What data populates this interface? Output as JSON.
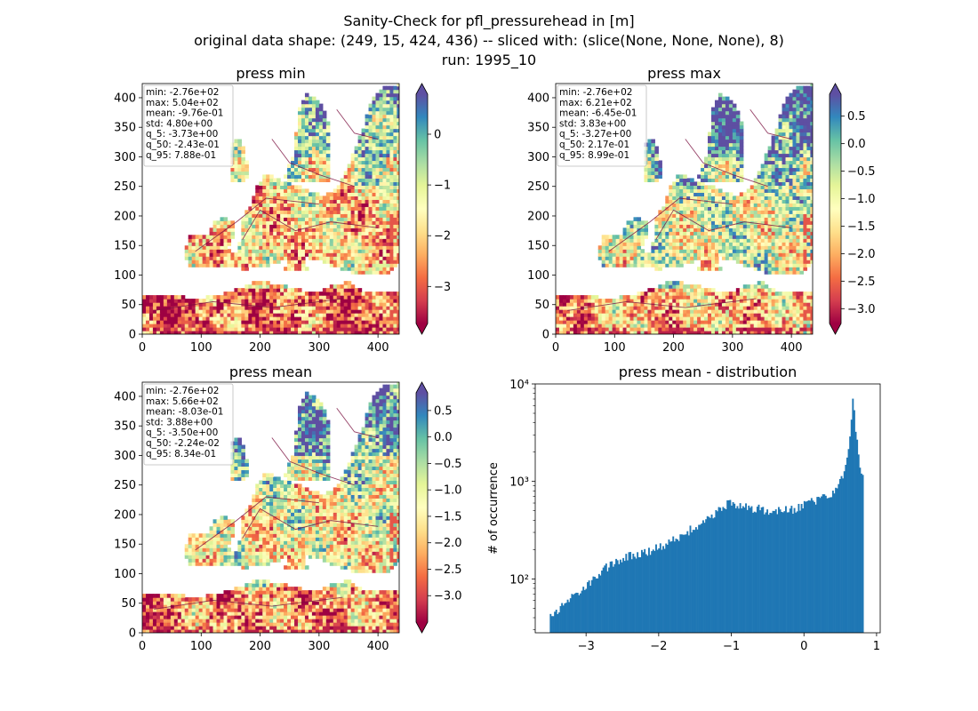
{
  "figure": {
    "title_line1": "Sanity-Check for pfl_pressurehead in [m]",
    "title_line2": "original data shape: (249, 15, 424, 436) -- sliced with: (slice(None, None, None), 8)",
    "title_line3": "run: 1995_10"
  },
  "colormap": {
    "name": "Spectral",
    "stops": [
      "#9e0142",
      "#d53e4f",
      "#f46d43",
      "#fdae61",
      "#fee08b",
      "#ffffbf",
      "#e6f598",
      "#abdda4",
      "#66c2a5",
      "#3288bd",
      "#5e4fa2"
    ],
    "land_background": "#fee08b",
    "river_color": "#7a1040"
  },
  "chart_data": [
    {
      "type": "heatmap",
      "title": "press min",
      "xlim": [
        0,
        436
      ],
      "ylim": [
        0,
        424
      ],
      "xticks": [
        0,
        100,
        200,
        300,
        400
      ],
      "yticks": [
        0,
        50,
        100,
        150,
        200,
        250,
        300,
        350,
        400
      ],
      "colorbar": {
        "vmin": -3.73,
        "vmax": 0.788,
        "ticks": [
          0,
          -1,
          -2,
          -3
        ],
        "tick_labels": [
          "0",
          "−1",
          "−2",
          "−3"
        ]
      },
      "stats": [
        "min: -2.76e+02",
        "max: 5.04e+02",
        "mean: -9.76e-01",
        "std: 4.80e+00",
        "q_5: -3.73e+00",
        "q_50: -2.43e-01",
        "q_95: 7.88e-01"
      ]
    },
    {
      "type": "heatmap",
      "title": "press max",
      "xlim": [
        0,
        436
      ],
      "ylim": [
        0,
        424
      ],
      "xticks": [
        0,
        100,
        200,
        300,
        400
      ],
      "yticks": [
        0,
        50,
        100,
        150,
        200,
        250,
        300,
        350,
        400
      ],
      "colorbar": {
        "vmin": -3.27,
        "vmax": 0.899,
        "ticks": [
          0.5,
          0.0,
          -0.5,
          -1.0,
          -1.5,
          -2.0,
          -2.5,
          -3.0
        ],
        "tick_labels": [
          "0.5",
          "0.0",
          "−0.5",
          "−1.0",
          "−1.5",
          "−2.0",
          "−2.5",
          "−3.0"
        ]
      },
      "stats": [
        "min: -2.76e+02",
        "max: 6.21e+02",
        "mean: -6.45e-01",
        "std: 3.83e+00",
        "q_5: -3.27e+00",
        "q_50: 2.17e-01",
        "q_95: 8.99e-01"
      ]
    },
    {
      "type": "heatmap",
      "title": "press mean",
      "xlim": [
        0,
        436
      ],
      "ylim": [
        0,
        424
      ],
      "xticks": [
        0,
        100,
        200,
        300,
        400
      ],
      "yticks": [
        0,
        50,
        100,
        150,
        200,
        250,
        300,
        350,
        400
      ],
      "colorbar": {
        "vmin": -3.5,
        "vmax": 0.834,
        "ticks": [
          0.5,
          0.0,
          -0.5,
          -1.0,
          -1.5,
          -2.0,
          -2.5,
          -3.0
        ],
        "tick_labels": [
          "0.5",
          "0.0",
          "−0.5",
          "−1.0",
          "−1.5",
          "−2.0",
          "−2.5",
          "−3.0"
        ]
      },
      "stats": [
        "min: -2.76e+02",
        "max: 5.66e+02",
        "mean: -8.03e-01",
        "std: 3.88e+00",
        "q_5: -3.50e+00",
        "q_50: -2.24e-02",
        "q_95: 8.34e-01"
      ]
    },
    {
      "type": "bar",
      "title": "press mean - distribution",
      "ylabel": "# of occurrence",
      "yscale": "log",
      "xlim": [
        -3.7,
        1.05
      ],
      "ylim": [
        28,
        10000
      ],
      "xticks": [
        -3,
        -2,
        -1,
        0,
        1
      ],
      "xtick_labels": [
        "−3",
        "−2",
        "−1",
        "0",
        "1"
      ],
      "yticks": [
        100,
        1000,
        10000
      ],
      "ytick_labels": [
        "10²",
        "10³",
        "10⁴"
      ],
      "bar_color": "#1f77b4",
      "bin_range": [
        -3.5,
        0.82
      ],
      "profile": [
        [
          -3.5,
          40
        ],
        [
          -3.3,
          55
        ],
        [
          -3.1,
          75
        ],
        [
          -2.9,
          100
        ],
        [
          -2.7,
          135
        ],
        [
          -2.5,
          165
        ],
        [
          -2.3,
          180
        ],
        [
          -2.1,
          195
        ],
        [
          -1.9,
          230
        ],
        [
          -1.7,
          280
        ],
        [
          -1.5,
          340
        ],
        [
          -1.3,
          440
        ],
        [
          -1.1,
          560
        ],
        [
          -1.0,
          600
        ],
        [
          -0.9,
          580
        ],
        [
          -0.7,
          530
        ],
        [
          -0.5,
          510
        ],
        [
          -0.3,
          500
        ],
        [
          -0.1,
          530
        ],
        [
          0.1,
          620
        ],
        [
          0.3,
          700
        ],
        [
          0.45,
          850
        ],
        [
          0.55,
          1200
        ],
        [
          0.6,
          1800
        ],
        [
          0.64,
          3000
        ],
        [
          0.67,
          7500
        ],
        [
          0.7,
          4200
        ],
        [
          0.73,
          2500
        ],
        [
          0.76,
          1600
        ],
        [
          0.79,
          1300
        ],
        [
          0.82,
          1000
        ]
      ]
    }
  ]
}
